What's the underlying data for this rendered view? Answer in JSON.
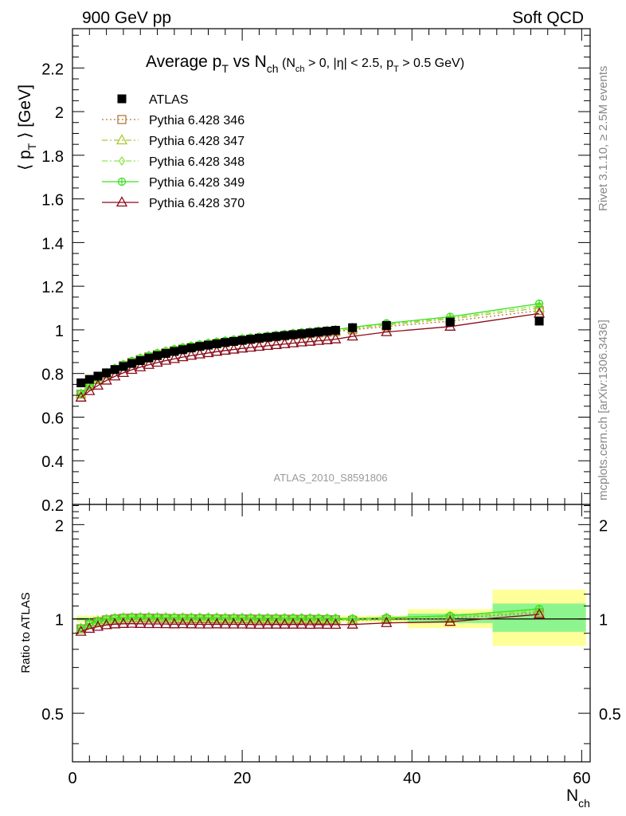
{
  "header": {
    "left": "900 GeV pp",
    "right": "Soft QCD"
  },
  "title": {
    "main": "Average p",
    "main_sub": "T",
    "vs": " vs N",
    "vs_sub": "ch",
    "cond_a": " (N",
    "cond_a_sub": "ch",
    "cond_b": " > 0, |η| < 2.5, p",
    "cond_b_sub": "T",
    "cond_c": " > 0.5 GeV)"
  },
  "side_labels": {
    "rivet": "Rivet 3.1.10, ≥ 2.5M events",
    "mcplots": "mcplots.cern.ch [arXiv:1306.3436]"
  },
  "watermark": "ATLAS_2010_S8591806",
  "axes": {
    "ylabel_main": {
      "pre": "⟨ p",
      "sub": "T",
      "post": " ⟩ [GeV]"
    },
    "ylabel_ratio": "Ratio to ATLAS",
    "xlabel": {
      "main": "N",
      "sub": "ch"
    }
  },
  "colors": {
    "atlas": "#000000",
    "p346": "#b07a3a",
    "p347": "#a8c832",
    "p348": "#8ee84a",
    "p349": "#3ae020",
    "p370": "#8b0a1a",
    "band_outer": "#ffff99",
    "band_inner": "#8ef58e"
  },
  "chart_data": [
    {
      "type": "scatter",
      "title": "",
      "xlabel": "",
      "ylabel": "⟨ pT ⟩ [GeV]",
      "xlim": [
        0,
        61
      ],
      "ylim": [
        0.2,
        2.38
      ],
      "x_ticks": [
        0,
        20,
        40,
        60
      ],
      "y_ticks": [
        0.2,
        0.4,
        0.6,
        0.8,
        1,
        1.2,
        1.4,
        1.6,
        1.8,
        2,
        2.2
      ],
      "y_tick_labels": [
        "0.2",
        "0.4",
        "0.6",
        "0.8",
        "1",
        "1.2",
        "1.4",
        "1.6",
        "1.8",
        "2",
        "2.2"
      ],
      "legend_position": "top-left",
      "x": [
        1,
        2,
        3,
        4,
        5,
        6,
        7,
        8,
        9,
        10,
        11,
        12,
        13,
        14,
        15,
        16,
        17,
        18,
        19,
        20,
        21,
        22,
        23,
        24,
        25,
        26,
        27,
        28,
        29,
        30,
        31,
        33,
        37,
        44.5,
        55
      ],
      "series": [
        {
          "name": "ATLAS",
          "marker": "filled-square",
          "color_key": "atlas",
          "values": [
            0.757,
            0.773,
            0.788,
            0.803,
            0.818,
            0.832,
            0.846,
            0.859,
            0.871,
            0.882,
            0.892,
            0.901,
            0.909,
            0.917,
            0.924,
            0.93,
            0.936,
            0.942,
            0.947,
            0.952,
            0.957,
            0.962,
            0.966,
            0.97,
            0.974,
            0.978,
            0.982,
            0.986,
            0.99,
            0.994,
            0.998,
            1.01,
            1.02,
            1.036,
            1.04
          ]
        },
        {
          "name": "Pythia 6.428 346",
          "marker": "open-square",
          "line": "dotted",
          "color_key": "p346",
          "values": [
            0.705,
            0.742,
            0.772,
            0.797,
            0.818,
            0.836,
            0.851,
            0.864,
            0.876,
            0.886,
            0.895,
            0.904,
            0.912,
            0.919,
            0.925,
            0.931,
            0.937,
            0.942,
            0.947,
            0.952,
            0.956,
            0.96,
            0.964,
            0.968,
            0.972,
            0.976,
            0.979,
            0.983,
            0.986,
            0.989,
            0.992,
            1.0,
            1.015,
            1.04,
            1.088
          ]
        },
        {
          "name": "Pythia 6.428 347",
          "marker": "open-triangle",
          "line": "dashdot",
          "color_key": "p347",
          "values": [
            0.705,
            0.743,
            0.773,
            0.798,
            0.819,
            0.837,
            0.852,
            0.866,
            0.878,
            0.888,
            0.898,
            0.906,
            0.914,
            0.921,
            0.928,
            0.934,
            0.94,
            0.945,
            0.95,
            0.955,
            0.959,
            0.963,
            0.967,
            0.971,
            0.975,
            0.979,
            0.983,
            0.986,
            0.989,
            0.992,
            0.995,
            1.005,
            1.022,
            1.05,
            1.1
          ]
        },
        {
          "name": "Pythia 6.428 348",
          "marker": "open-diamond",
          "line": "dashdot",
          "color_key": "p348",
          "values": [
            0.708,
            0.746,
            0.776,
            0.801,
            0.822,
            0.84,
            0.856,
            0.869,
            0.881,
            0.892,
            0.901,
            0.91,
            0.918,
            0.925,
            0.932,
            0.938,
            0.944,
            0.949,
            0.954,
            0.959,
            0.963,
            0.967,
            0.971,
            0.975,
            0.979,
            0.983,
            0.987,
            0.99,
            0.994,
            0.997,
            1.0,
            1.01,
            1.027,
            1.055,
            1.11
          ]
        },
        {
          "name": "Pythia 6.428 349",
          "marker": "open-circle-cross",
          "line": "solid",
          "color_key": "p349",
          "values": [
            0.708,
            0.747,
            0.777,
            0.802,
            0.823,
            0.841,
            0.857,
            0.87,
            0.882,
            0.893,
            0.902,
            0.911,
            0.919,
            0.926,
            0.933,
            0.939,
            0.945,
            0.95,
            0.955,
            0.96,
            0.964,
            0.968,
            0.972,
            0.976,
            0.98,
            0.984,
            0.988,
            0.991,
            0.995,
            0.998,
            1.001,
            1.012,
            1.03,
            1.06,
            1.12
          ]
        },
        {
          "name": "Pythia 6.428 370",
          "marker": "open-triangle",
          "line": "solid",
          "color_key": "p370",
          "values": [
            0.69,
            0.72,
            0.745,
            0.768,
            0.787,
            0.803,
            0.817,
            0.829,
            0.84,
            0.85,
            0.859,
            0.867,
            0.875,
            0.882,
            0.888,
            0.894,
            0.9,
            0.905,
            0.91,
            0.915,
            0.919,
            0.923,
            0.927,
            0.931,
            0.935,
            0.939,
            0.943,
            0.946,
            0.95,
            0.953,
            0.957,
            0.97,
            0.99,
            1.015,
            1.075
          ]
        }
      ]
    },
    {
      "type": "scatter",
      "title": "",
      "xlabel": "Nch",
      "ylabel": "Ratio to ATLAS",
      "xlim": [
        0,
        61
      ],
      "ylim": [
        0.35,
        2.32
      ],
      "x_ticks": [
        0,
        20,
        40,
        60
      ],
      "x_tick_labels": [
        "0",
        "20",
        "40",
        "60"
      ],
      "y_ticks": [
        0.5,
        1,
        2
      ],
      "y_tick_labels": [
        "0.5",
        "1",
        "2"
      ],
      "log_scale_y": true,
      "reference_line": 1,
      "uncertainty_bands": [
        {
          "x": [
            0.5,
            39.5
          ],
          "outer": [
            0.975,
            1.025
          ],
          "inner": [
            0.99,
            1.01
          ]
        },
        {
          "x": [
            39.5,
            49.5
          ],
          "outer": [
            0.935,
            1.075
          ],
          "inner": [
            0.97,
            1.04
          ]
        },
        {
          "x": [
            49.5,
            60.5
          ],
          "outer": [
            0.82,
            1.24
          ],
          "inner": [
            0.91,
            1.12
          ]
        }
      ],
      "x": [
        1,
        2,
        3,
        4,
        5,
        6,
        7,
        8,
        9,
        10,
        11,
        12,
        13,
        14,
        15,
        16,
        17,
        18,
        19,
        20,
        21,
        22,
        23,
        24,
        25,
        26,
        27,
        28,
        29,
        30,
        31,
        33,
        37,
        44.5,
        55
      ],
      "series": [
        {
          "name": "Pythia 6.428 346",
          "color_key": "p346",
          "values": [
            0.93,
            0.96,
            0.98,
            0.993,
            1.0,
            1.005,
            1.006,
            1.006,
            1.006,
            1.005,
            1.004,
            1.003,
            1.003,
            1.002,
            1.001,
            1.001,
            1.001,
            1.0,
            1.0,
            1.0,
            0.999,
            0.998,
            0.998,
            0.998,
            0.998,
            0.998,
            0.997,
            0.997,
            0.996,
            0.995,
            0.994,
            0.99,
            0.995,
            1.004,
            1.046
          ]
        },
        {
          "name": "Pythia 6.428 347",
          "color_key": "p347",
          "values": [
            0.931,
            0.961,
            0.981,
            0.994,
            1.001,
            1.006,
            1.007,
            1.008,
            1.008,
            1.007,
            1.007,
            1.005,
            1.005,
            1.004,
            1.004,
            1.004,
            1.004,
            1.003,
            1.003,
            1.003,
            1.002,
            1.001,
            1.001,
            1.001,
            1.001,
            1.001,
            1.001,
            1.0,
            0.999,
            0.998,
            0.997,
            0.995,
            1.002,
            1.014,
            1.058
          ]
        },
        {
          "name": "Pythia 6.428 348",
          "color_key": "p348",
          "values": [
            0.935,
            0.965,
            0.985,
            0.998,
            1.005,
            1.01,
            1.012,
            1.012,
            1.011,
            1.011,
            1.01,
            1.01,
            1.01,
            1.009,
            1.009,
            1.009,
            1.009,
            1.007,
            1.007,
            1.007,
            1.006,
            1.005,
            1.005,
            1.005,
            1.005,
            1.005,
            1.005,
            1.004,
            1.004,
            1.003,
            1.002,
            1.0,
            1.007,
            1.018,
            1.067
          ]
        },
        {
          "name": "Pythia 6.428 349",
          "color_key": "p349",
          "values": [
            0.935,
            0.966,
            0.986,
            0.999,
            1.006,
            1.011,
            1.013,
            1.013,
            1.013,
            1.012,
            1.011,
            1.011,
            1.011,
            1.01,
            1.01,
            1.01,
            1.01,
            1.008,
            1.008,
            1.008,
            1.007,
            1.006,
            1.006,
            1.006,
            1.006,
            1.006,
            1.006,
            1.005,
            1.005,
            1.004,
            1.003,
            1.002,
            1.01,
            1.023,
            1.077
          ]
        },
        {
          "name": "Pythia 6.428 370",
          "color_key": "p370",
          "values": [
            0.911,
            0.931,
            0.945,
            0.956,
            0.962,
            0.965,
            0.966,
            0.965,
            0.964,
            0.964,
            0.963,
            0.962,
            0.963,
            0.962,
            0.961,
            0.961,
            0.962,
            0.961,
            0.961,
            0.961,
            0.96,
            0.959,
            0.96,
            0.96,
            0.96,
            0.96,
            0.96,
            0.959,
            0.96,
            0.959,
            0.959,
            0.96,
            0.971,
            0.98,
            1.034
          ]
        }
      ]
    }
  ]
}
